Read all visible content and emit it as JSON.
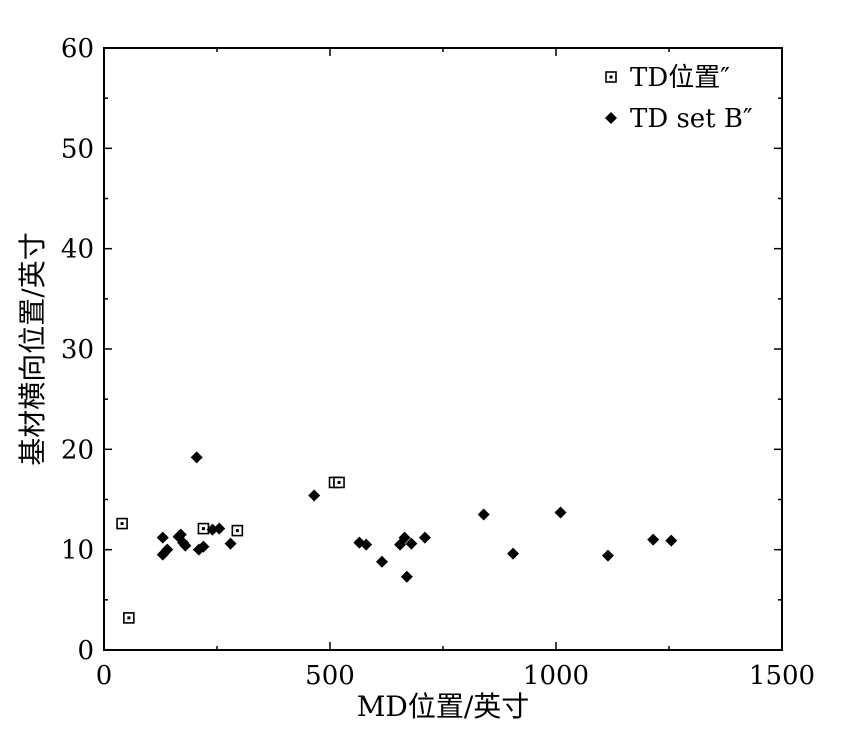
{
  "chart_data": {
    "type": "scatter",
    "title": "",
    "xlabel": "MD位置/英寸",
    "ylabel": "基材横向位置/英寸",
    "xlim": [
      0,
      1500
    ],
    "ylim": [
      0,
      60
    ],
    "xticks": [
      0,
      500,
      1000,
      1500
    ],
    "yticks": [
      0,
      10,
      20,
      30,
      40,
      50,
      60
    ],
    "grid": false,
    "legend_position": "top-right",
    "series": [
      {
        "name": "TD位置″",
        "marker": "open-square",
        "color": "#000000",
        "points": [
          {
            "x": 40,
            "y": 12.6
          },
          {
            "x": 55,
            "y": 3.2
          },
          {
            "x": 220,
            "y": 12.1
          },
          {
            "x": 295,
            "y": 11.9
          },
          {
            "x": 510,
            "y": 16.7
          },
          {
            "x": 520,
            "y": 16.7
          }
        ]
      },
      {
        "name": "TD set B″",
        "marker": "filled-diamond",
        "color": "#000000",
        "points": [
          {
            "x": 130,
            "y": 11.2
          },
          {
            "x": 130,
            "y": 9.5
          },
          {
            "x": 140,
            "y": 10.0
          },
          {
            "x": 165,
            "y": 11.3
          },
          {
            "x": 170,
            "y": 11.5
          },
          {
            "x": 175,
            "y": 10.7
          },
          {
            "x": 180,
            "y": 10.4
          },
          {
            "x": 205,
            "y": 19.2
          },
          {
            "x": 210,
            "y": 10.0
          },
          {
            "x": 220,
            "y": 10.3
          },
          {
            "x": 240,
            "y": 12.0
          },
          {
            "x": 255,
            "y": 12.1
          },
          {
            "x": 280,
            "y": 10.6
          },
          {
            "x": 465,
            "y": 15.4
          },
          {
            "x": 565,
            "y": 10.7
          },
          {
            "x": 580,
            "y": 10.5
          },
          {
            "x": 615,
            "y": 8.8
          },
          {
            "x": 655,
            "y": 10.5
          },
          {
            "x": 665,
            "y": 11.2
          },
          {
            "x": 670,
            "y": 7.3
          },
          {
            "x": 680,
            "y": 10.6
          },
          {
            "x": 710,
            "y": 11.2
          },
          {
            "x": 840,
            "y": 13.5
          },
          {
            "x": 905,
            "y": 9.6
          },
          {
            "x": 1010,
            "y": 13.7
          },
          {
            "x": 1115,
            "y": 9.4
          },
          {
            "x": 1215,
            "y": 11.0
          },
          {
            "x": 1255,
            "y": 10.9
          }
        ]
      }
    ]
  }
}
